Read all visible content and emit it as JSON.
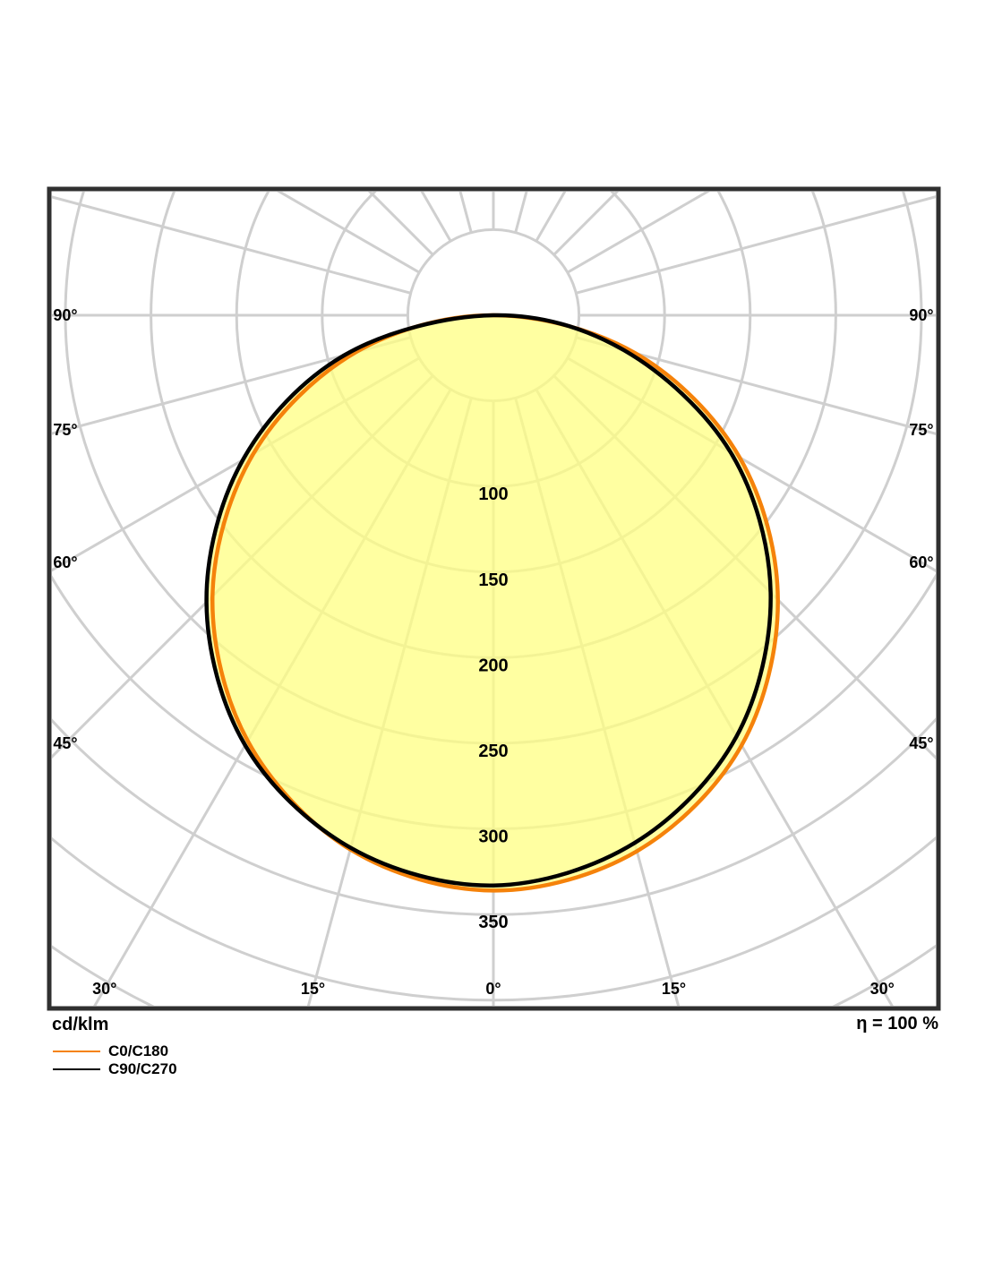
{
  "footer": {
    "unit_label": "cd/klm",
    "efficiency_label": "η = 100 %"
  },
  "legend": {
    "items": [
      {
        "label": "C0/C180",
        "color": "#F5820A"
      },
      {
        "label": "C90/C270",
        "color": "#000000"
      }
    ]
  },
  "chart_data": {
    "type": "polar",
    "subtype": "luminous-intensity-distribution",
    "unit": "cd/klm",
    "efficiency_text": "η = 100 %",
    "gamma_deg": [
      0,
      15,
      30,
      45,
      60,
      75,
      90
    ],
    "series": [
      {
        "name": "C0/C180",
        "color": "#F5820A",
        "right_values": [
          336,
          324,
          290,
          235,
          166,
          86,
          0
        ],
        "left_values": [
          336,
          323,
          287,
          232,
          162,
          83,
          0
        ]
      },
      {
        "name": "C90/C270",
        "color": "#000000",
        "right_values": [
          333,
          319,
          284,
          229,
          160,
          79,
          0
        ],
        "left_values": [
          333,
          322,
          290,
          237,
          169,
          90,
          0
        ]
      }
    ],
    "radial_ticks": [
      100,
      150,
      200,
      250,
      300,
      350
    ],
    "radial_rings": [
      50,
      100,
      150,
      200,
      250,
      300,
      350,
      400,
      450
    ],
    "side_angle_ticks": [
      90,
      75,
      60,
      45
    ],
    "bottom_angle_ticks": [
      30,
      15,
      0
    ],
    "angle_unit": "°",
    "spoke_step_deg": 15,
    "axis_ranges": {
      "r_min": 0,
      "r_max": 450
    },
    "grid": true,
    "grid_color": "#CFCFCF",
    "fill_color": "rgba(255,255,130,0.75)",
    "border_color": "#303030",
    "legend_position": "bottom-left"
  }
}
